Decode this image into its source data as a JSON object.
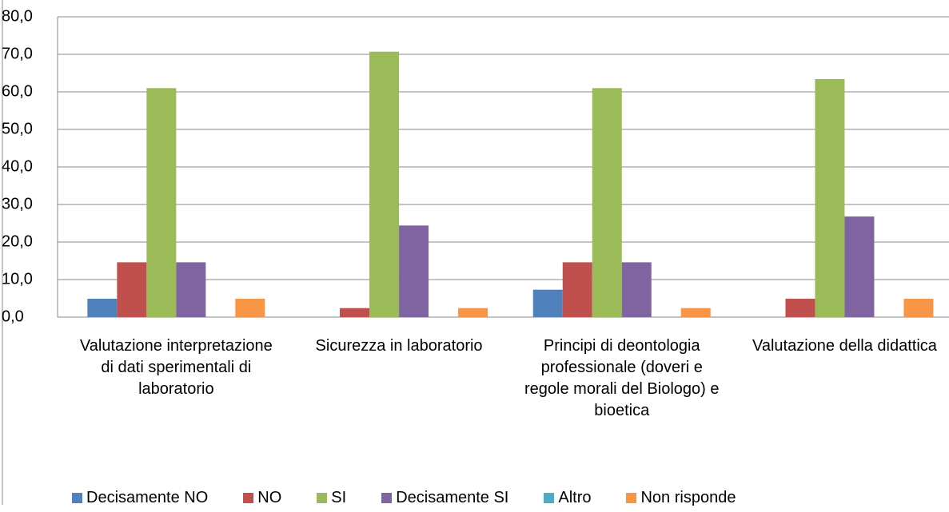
{
  "chart_data": {
    "type": "bar",
    "categories": [
      "Valutazione interpretazione di dati sperimentali di laboratorio",
      "Sicurezza in laboratorio",
      "Principi di deontologia professionale (doveri e regole morali del Biologo) e bioetica",
      "Valutazione della didattica"
    ],
    "series": [
      {
        "name": "Decisamente NO",
        "color": "#4f81bd",
        "values": [
          4.9,
          0,
          7.3,
          0
        ]
      },
      {
        "name": "NO",
        "color": "#c0504d",
        "values": [
          14.6,
          2.4,
          14.6,
          4.9
        ]
      },
      {
        "name": "SI",
        "color": "#9bbb59",
        "values": [
          61.0,
          70.7,
          61.0,
          63.4
        ]
      },
      {
        "name": "Decisamente SI",
        "color": "#8064a2",
        "values": [
          14.6,
          24.4,
          14.6,
          26.8
        ]
      },
      {
        "name": "Altro",
        "color": "#4bacc6",
        "values": [
          0,
          0,
          0,
          0
        ]
      },
      {
        "name": "Non risponde",
        "color": "#f79646",
        "values": [
          4.9,
          2.4,
          2.4,
          4.9
        ]
      }
    ],
    "ylim": [
      0,
      80
    ],
    "yticks": [
      {
        "value": 0,
        "label": "0,0"
      },
      {
        "value": 10,
        "label": "10,0"
      },
      {
        "value": 20,
        "label": "20,0"
      },
      {
        "value": 30,
        "label": "30,0"
      },
      {
        "value": 40,
        "label": "40,0"
      },
      {
        "value": 50,
        "label": "50,0"
      },
      {
        "value": 60,
        "label": "60,0"
      },
      {
        "value": 70,
        "label": "70,0"
      },
      {
        "value": 80,
        "label": "80,0"
      }
    ],
    "grid": true,
    "legend": "bottom"
  }
}
